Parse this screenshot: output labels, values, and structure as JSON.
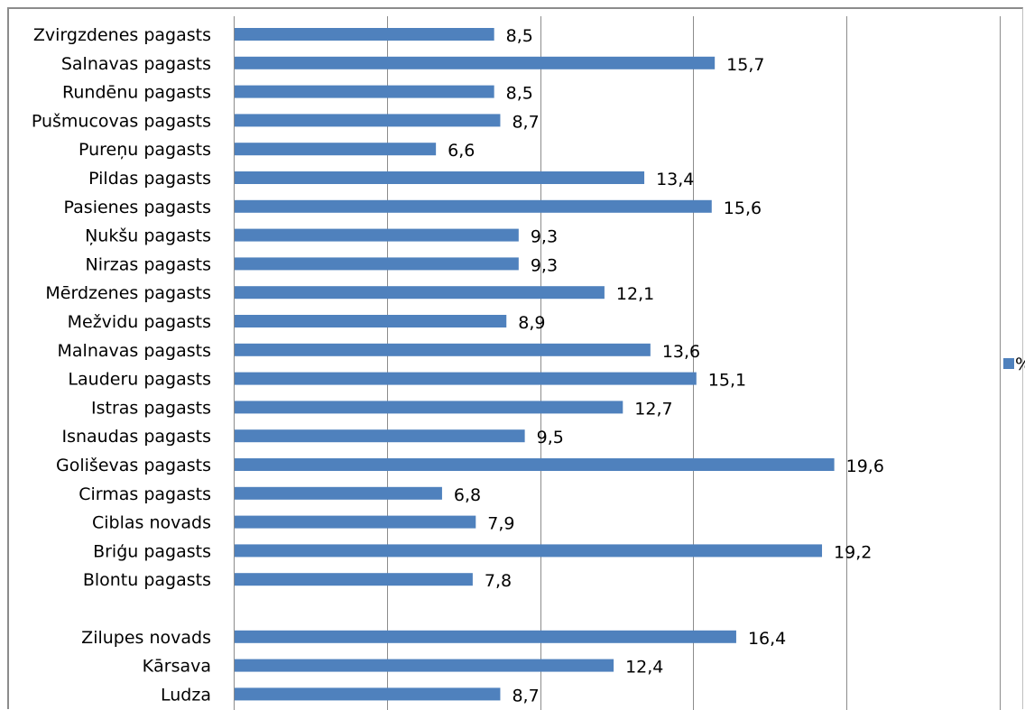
{
  "chart_data": {
    "type": "bar",
    "orientation": "horizontal",
    "categories": [
      "Zvirgzdenes pagasts",
      "Salnavas pagasts",
      "Rundēnu pagasts",
      "Pušmucovas pagasts",
      "Pureņu pagasts",
      "Pildas pagasts",
      "Pasienes pagasts",
      "Ņukšu pagasts",
      "Nirzas pagasts",
      "Mērdzenes pagasts",
      "Mežvidu pagasts",
      "Malnavas pagasts",
      "Lauderu pagasts",
      "Istras pagasts",
      "Isnaudas pagasts",
      "Goliševas pagasts",
      "Cirmas pagasts",
      "Ciblas novads",
      "Briģu pagasts",
      "Blontu pagasts",
      "",
      "Zilupes novads",
      "Kārsava",
      "Ludza"
    ],
    "series": [
      {
        "name": "%",
        "values": [
          8.5,
          15.7,
          8.5,
          8.7,
          6.6,
          13.4,
          15.6,
          9.3,
          9.3,
          12.1,
          8.9,
          13.6,
          15.1,
          12.7,
          9.5,
          19.6,
          6.8,
          7.9,
          19.2,
          7.8,
          null,
          16.4,
          12.4,
          8.7
        ],
        "labels": [
          "8,5",
          "15,7",
          "8,5",
          "8,7",
          "6,6",
          "13,4",
          "15,6",
          "9,3",
          "9,3",
          "12,1",
          "8,9",
          "13,6",
          "15,1",
          "12,7",
          "9,5",
          "19,6",
          "6,8",
          "7,9",
          "19,2",
          "7,8",
          "",
          "16,4",
          "12,4",
          "8,7"
        ],
        "color": "#4f81bd"
      }
    ],
    "xlim": [
      0,
      25
    ],
    "grid": true,
    "legend": "right",
    "title": "",
    "xlabel": "",
    "ylabel": ""
  }
}
